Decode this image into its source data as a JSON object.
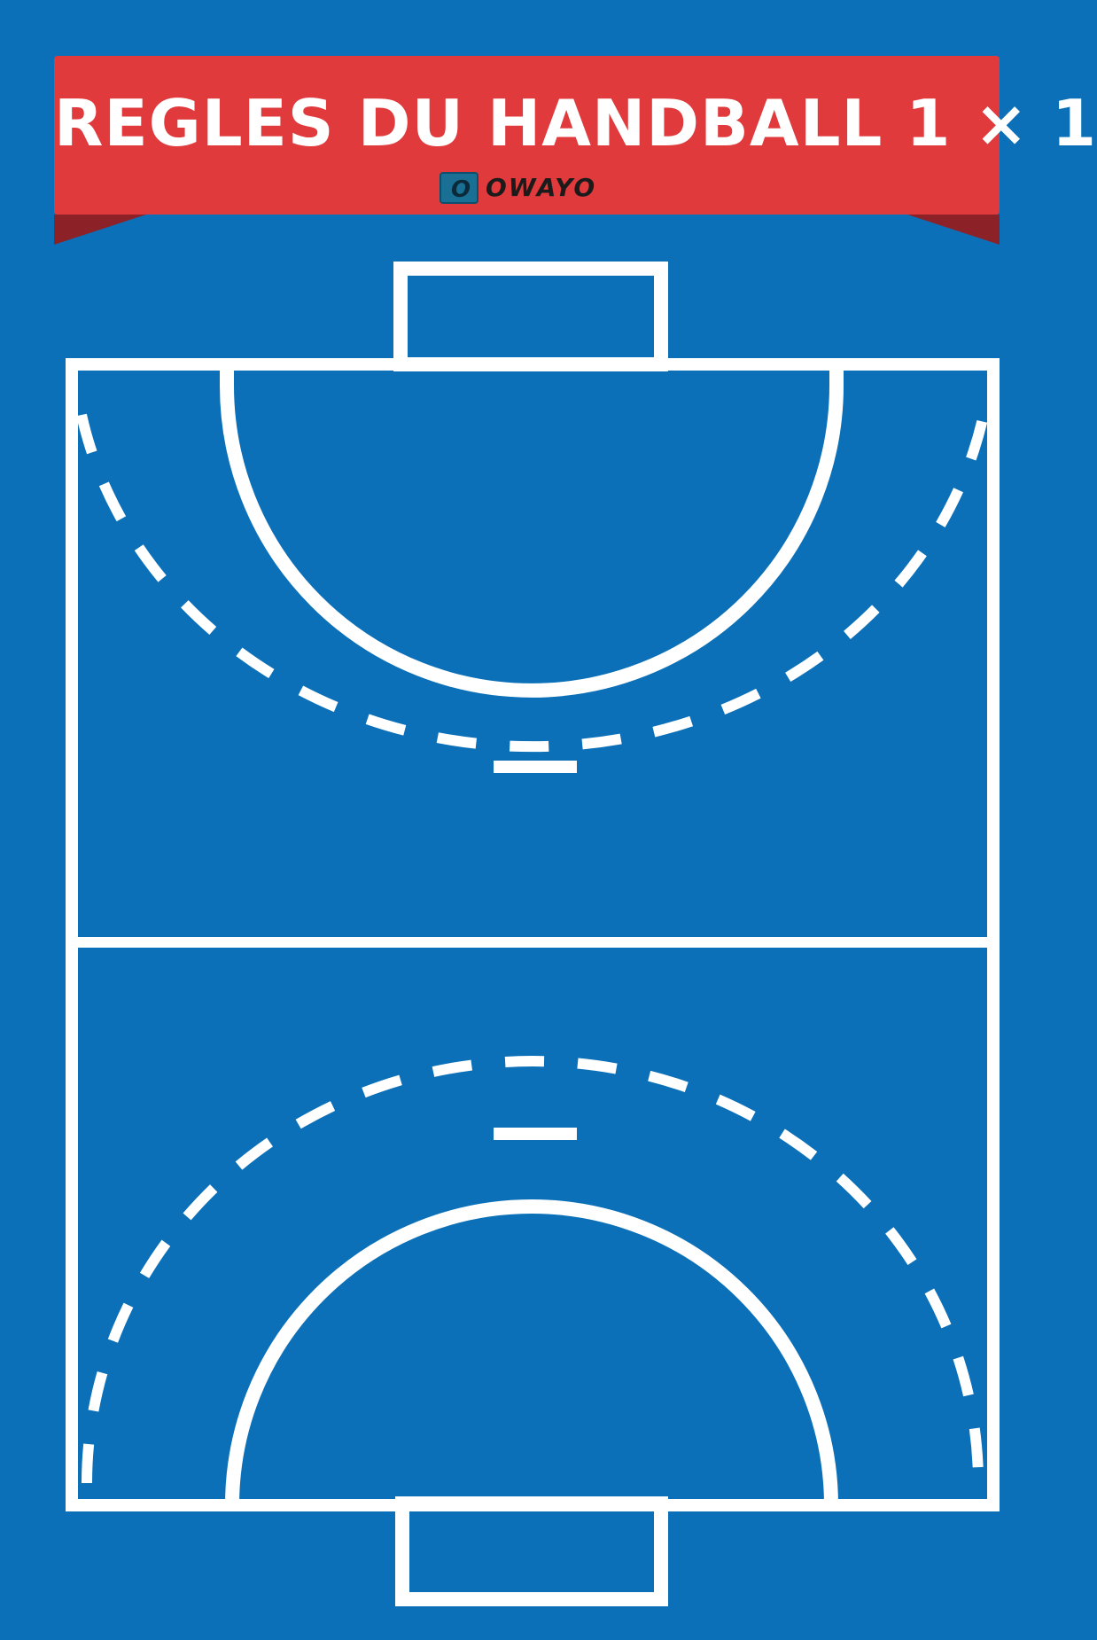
{
  "banner": {
    "title": "REGLES DU HANDBALL 1 × 1",
    "logo_text": "OWAYO",
    "logo_mark": "O",
    "color": "#e03a3c",
    "fold_color": "#8c2227"
  },
  "court": {
    "background_color": "#0b70b8",
    "line_color": "#ffffff"
  }
}
